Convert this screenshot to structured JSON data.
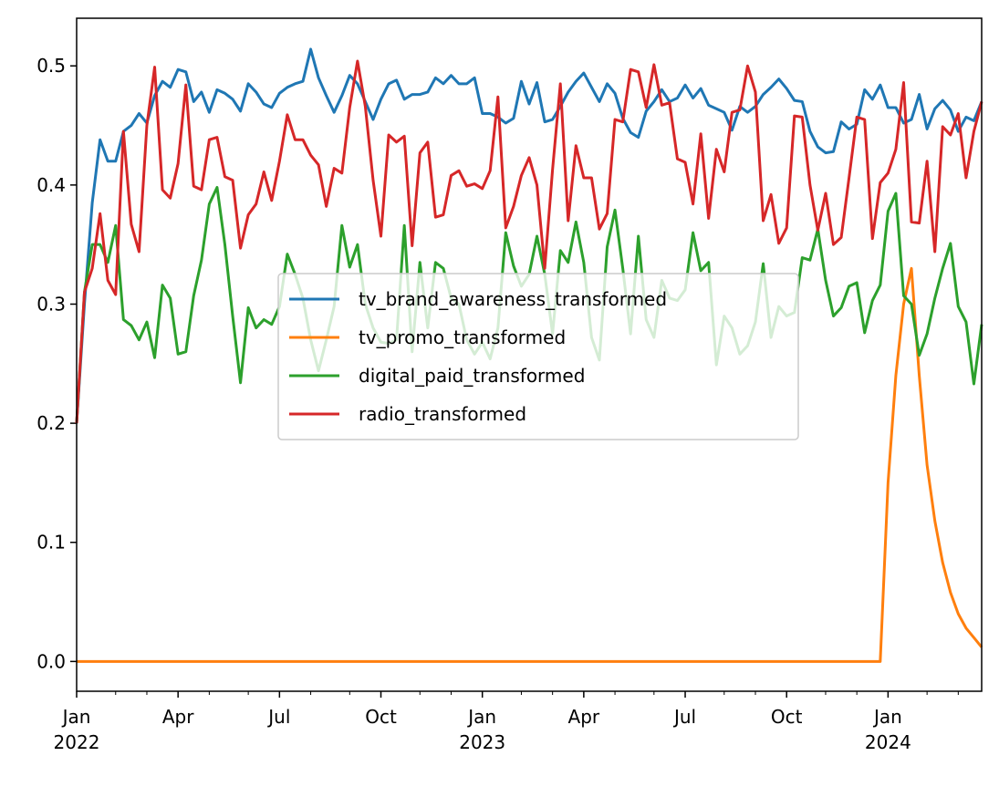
{
  "chart_data": {
    "type": "line",
    "x": [
      "2022-01",
      "2022-01",
      "2022-01",
      "2022-01",
      "2022-01",
      "2022-02",
      "2022-02",
      "2022-02",
      "2022-02",
      "2022-03",
      "2022-03",
      "2022-03",
      "2022-03",
      "2022-04",
      "2022-04",
      "2022-04",
      "2022-04",
      "2022-05",
      "2022-05",
      "2022-05",
      "2022-05",
      "2022-05",
      "2022-06",
      "2022-06",
      "2022-06",
      "2022-06",
      "2022-07",
      "2022-07",
      "2022-07",
      "2022-07",
      "2022-08",
      "2022-08",
      "2022-08",
      "2022-08",
      "2022-08",
      "2022-09",
      "2022-09",
      "2022-09",
      "2022-09",
      "2022-10",
      "2022-10",
      "2022-10",
      "2022-10",
      "2022-10",
      "2022-11",
      "2022-11",
      "2022-11",
      "2022-11",
      "2022-12",
      "2022-12",
      "2022-12",
      "2022-12",
      "2023-01",
      "2023-01",
      "2023-01",
      "2023-01",
      "2023-01",
      "2023-02",
      "2023-02",
      "2023-02",
      "2023-02",
      "2023-03",
      "2023-03",
      "2023-03",
      "2023-03",
      "2023-04",
      "2023-04",
      "2023-04",
      "2023-04",
      "2023-05",
      "2023-05",
      "2023-05",
      "2023-05",
      "2023-05",
      "2023-06",
      "2023-06",
      "2023-06",
      "2023-06",
      "2023-07",
      "2023-07",
      "2023-07",
      "2023-07",
      "2023-07",
      "2023-08",
      "2023-08",
      "2023-08",
      "2023-08",
      "2023-09",
      "2023-09",
      "2023-09",
      "2023-09",
      "2023-10",
      "2023-10",
      "2023-10",
      "2023-10",
      "2023-10",
      "2023-11",
      "2023-11",
      "2023-11",
      "2023-11",
      "2023-12",
      "2023-12",
      "2023-12",
      "2023-12",
      "2024-01",
      "2024-01",
      "2024-01",
      "2024-01",
      "2024-01",
      "2024-02",
      "2024-02",
      "2024-02",
      "2024-02",
      "2024-03",
      "2024-03",
      "2024-03",
      "2024-03"
    ],
    "series": [
      {
        "name": "tv_brand_awareness_transformed",
        "color": "#1f77b4",
        "values": [
          0.2,
          0.3,
          0.385,
          0.438,
          0.42,
          0.42,
          0.445,
          0.45,
          0.46,
          0.452,
          0.475,
          0.487,
          0.482,
          0.497,
          0.495,
          0.47,
          0.478,
          0.461,
          0.48,
          0.477,
          0.472,
          0.462,
          0.485,
          0.478,
          0.468,
          0.465,
          0.477,
          0.482,
          0.485,
          0.487,
          0.514,
          0.49,
          0.475,
          0.461,
          0.475,
          0.492,
          0.485,
          0.47,
          0.455,
          0.472,
          0.485,
          0.488,
          0.472,
          0.476,
          0.476,
          0.478,
          0.49,
          0.485,
          0.492,
          0.485,
          0.485,
          0.49,
          0.46,
          0.46,
          0.457,
          0.452,
          0.456,
          0.487,
          0.468,
          0.486,
          0.453,
          0.455,
          0.466,
          0.478,
          0.487,
          0.494,
          0.482,
          0.47,
          0.485,
          0.477,
          0.456,
          0.444,
          0.44,
          0.462,
          0.47,
          0.48,
          0.47,
          0.473,
          0.484,
          0.473,
          0.481,
          0.467,
          0.464,
          0.461,
          0.446,
          0.466,
          0.461,
          0.466,
          0.476,
          0.482,
          0.489,
          0.481,
          0.471,
          0.47,
          0.445,
          0.432,
          0.427,
          0.428,
          0.453,
          0.447,
          0.451,
          0.48,
          0.472,
          0.484,
          0.465,
          0.465,
          0.452,
          0.455,
          0.476,
          0.447,
          0.464,
          0.471,
          0.463,
          0.445,
          0.457,
          0.454,
          0.47
        ]
      },
      {
        "name": "tv_promo_transformed",
        "color": "#ff7f0e",
        "values": [
          0,
          0,
          0,
          0,
          0,
          0,
          0,
          0,
          0,
          0,
          0,
          0,
          0,
          0,
          0,
          0,
          0,
          0,
          0,
          0,
          0,
          0,
          0,
          0,
          0,
          0,
          0,
          0,
          0,
          0,
          0,
          0,
          0,
          0,
          0,
          0,
          0,
          0,
          0,
          0,
          0,
          0,
          0,
          0,
          0,
          0,
          0,
          0,
          0,
          0,
          0,
          0,
          0,
          0,
          0,
          0,
          0,
          0,
          0,
          0,
          0,
          0,
          0,
          0,
          0,
          0,
          0,
          0,
          0,
          0,
          0,
          0,
          0,
          0,
          0,
          0,
          0,
          0,
          0,
          0,
          0,
          0,
          0,
          0,
          0,
          0,
          0,
          0,
          0,
          0,
          0,
          0,
          0,
          0,
          0,
          0,
          0,
          0,
          0,
          0,
          0,
          0,
          0,
          0,
          0.15,
          0.24,
          0.3,
          0.33,
          0.24,
          0.165,
          0.118,
          0.083,
          0.058,
          0.04,
          0.028,
          0.02,
          0.012
        ]
      },
      {
        "name": "digital_paid_transformed",
        "color": "#2ca02c",
        "values": [
          0.2,
          0.31,
          0.35,
          0.35,
          0.335,
          0.366,
          0.287,
          0.282,
          0.27,
          0.285,
          0.255,
          0.316,
          0.305,
          0.258,
          0.26,
          0.307,
          0.337,
          0.384,
          0.398,
          0.35,
          0.29,
          0.234,
          0.297,
          0.28,
          0.287,
          0.283,
          0.298,
          0.342,
          0.325,
          0.305,
          0.27,
          0.244,
          0.27,
          0.298,
          0.366,
          0.331,
          0.35,
          0.3,
          0.28,
          0.268,
          0.267,
          0.27,
          0.366,
          0.26,
          0.335,
          0.28,
          0.335,
          0.33,
          0.305,
          0.3,
          0.27,
          0.258,
          0.268,
          0.254,
          0.28,
          0.36,
          0.332,
          0.315,
          0.325,
          0.357,
          0.325,
          0.275,
          0.345,
          0.335,
          0.369,
          0.335,
          0.272,
          0.253,
          0.348,
          0.379,
          0.33,
          0.275,
          0.357,
          0.287,
          0.272,
          0.32,
          0.305,
          0.303,
          0.312,
          0.36,
          0.328,
          0.335,
          0.249,
          0.29,
          0.28,
          0.258,
          0.265,
          0.285,
          0.334,
          0.272,
          0.298,
          0.29,
          0.293,
          0.339,
          0.337,
          0.363,
          0.32,
          0.29,
          0.297,
          0.315,
          0.318,
          0.276,
          0.303,
          0.316,
          0.378,
          0.393,
          0.307,
          0.3,
          0.257,
          0.275,
          0.305,
          0.33,
          0.351,
          0.298,
          0.285,
          0.233,
          0.283
        ]
      },
      {
        "name": "radio_transformed",
        "color": "#d62728",
        "values": [
          0.2,
          0.31,
          0.33,
          0.376,
          0.32,
          0.308,
          0.445,
          0.367,
          0.344,
          0.45,
          0.499,
          0.396,
          0.389,
          0.418,
          0.484,
          0.399,
          0.396,
          0.438,
          0.44,
          0.407,
          0.404,
          0.347,
          0.375,
          0.384,
          0.411,
          0.387,
          0.42,
          0.459,
          0.438,
          0.438,
          0.425,
          0.417,
          0.382,
          0.414,
          0.41,
          0.465,
          0.504,
          0.466,
          0.404,
          0.357,
          0.442,
          0.436,
          0.441,
          0.349,
          0.427,
          0.436,
          0.373,
          0.375,
          0.408,
          0.412,
          0.399,
          0.401,
          0.397,
          0.412,
          0.474,
          0.364,
          0.382,
          0.408,
          0.423,
          0.4,
          0.33,
          0.413,
          0.485,
          0.37,
          0.433,
          0.406,
          0.406,
          0.363,
          0.376,
          0.455,
          0.453,
          0.497,
          0.495,
          0.465,
          0.501,
          0.467,
          0.469,
          0.422,
          0.419,
          0.384,
          0.443,
          0.372,
          0.43,
          0.411,
          0.461,
          0.463,
          0.5,
          0.478,
          0.37,
          0.392,
          0.351,
          0.364,
          0.458,
          0.457,
          0.4,
          0.362,
          0.393,
          0.35,
          0.356,
          0.406,
          0.457,
          0.455,
          0.355,
          0.402,
          0.41,
          0.43,
          0.486,
          0.369,
          0.368,
          0.42,
          0.344,
          0.449,
          0.442,
          0.46,
          0.406,
          0.445,
          0.47
        ]
      }
    ],
    "ylim": [
      -0.025,
      0.54
    ],
    "yticks": [
      {
        "value": 0,
        "label": "0.0"
      },
      0.1,
      0.2,
      0.3,
      0.4,
      0.5
    ],
    "xticks": [
      {
        "value": "2022-01",
        "label": [
          "Jan",
          "2022"
        ]
      },
      {
        "value": "2022-04",
        "label": [
          "Apr"
        ]
      },
      {
        "value": "2022-07",
        "label": [
          "Jul"
        ]
      },
      {
        "value": "2022-10",
        "label": [
          "Oct"
        ]
      },
      {
        "value": "2023-01",
        "label": [
          "Jan",
          "2023"
        ]
      },
      {
        "value": "2023-04",
        "label": [
          "Apr"
        ]
      },
      {
        "value": "2023-07",
        "label": [
          "Jul"
        ]
      },
      {
        "value": "2023-10",
        "label": [
          "Oct"
        ]
      },
      {
        "value": "2024-01",
        "label": [
          "Jan",
          "2024"
        ]
      }
    ],
    "legend": "center"
  }
}
